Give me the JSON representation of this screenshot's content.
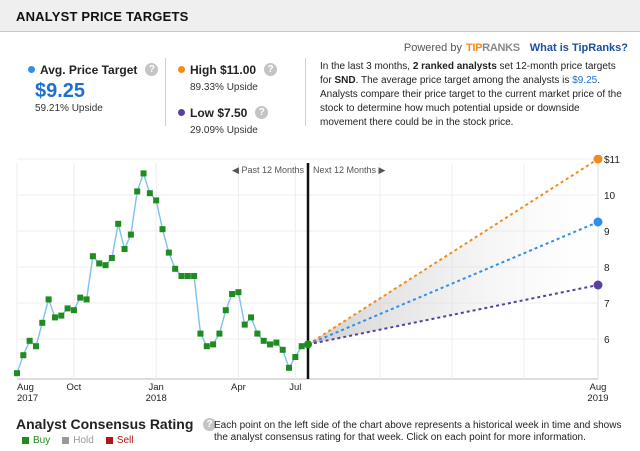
{
  "header": {
    "title": "ANALYST PRICE TARGETS"
  },
  "powered_by": {
    "prefix": "Powered by",
    "brand_tip": "TIP",
    "brand_ranks": "RANKS",
    "link": "What is TipRanks?"
  },
  "avg": {
    "label": "Avg. Price Target",
    "value": "$9.25",
    "upside": "59.21% Upside",
    "color": "#2f8fe8"
  },
  "high": {
    "label": "High $11.00",
    "upside": "89.33% Upside",
    "color": "#f08c1e"
  },
  "low": {
    "label": "Low $7.50",
    "upside": "29.09% Upside",
    "color": "#5a3fa0"
  },
  "description": {
    "p1": "In the last 3 months, ",
    "b1": "2 ranked analysts",
    "p2": " set 12-month price targets for ",
    "ticker": "SND",
    "p3": ". The average price target among the analysts is ",
    "avg": "$9.25",
    "p4": ". Analysts compare their price target to the current market price of the stock to determine how much potential upside or downside movement there could be in the stock price."
  },
  "chart_data": {
    "type": "line",
    "period_labels": {
      "past": "◀ Past 12 Months",
      "next": "Next 12 Months ▶"
    },
    "x_ticks": [
      {
        "label": "Aug",
        "sub": "2017"
      },
      {
        "label": "Oct",
        "sub": ""
      },
      {
        "label": "Jan",
        "sub": "2018"
      },
      {
        "label": "Apr",
        "sub": ""
      },
      {
        "label": "Jul",
        "sub": ""
      },
      {
        "label": "Aug",
        "sub": "2019"
      }
    ],
    "y_ticks": [
      "$11",
      "10",
      "9",
      "8",
      "7",
      "6"
    ],
    "ylim": [
      5,
      11
    ],
    "series": [
      {
        "name": "Price",
        "color": "#7ec0ef",
        "values": [
          5.05,
          5.55,
          5.95,
          5.8,
          6.45,
          7.1,
          6.6,
          6.65,
          6.85,
          6.8,
          7.15,
          7.1,
          8.3,
          8.1,
          8.05,
          8.25,
          9.2,
          8.5,
          8.9,
          10.1,
          10.6,
          10.05,
          9.85,
          9.05,
          8.4,
          7.95,
          7.75,
          7.75,
          7.75,
          6.15,
          5.8,
          5.85,
          6.15,
          6.8,
          7.25,
          7.3,
          6.4,
          6.6,
          6.15,
          5.95,
          5.85,
          5.9,
          5.7,
          5.2,
          5.5,
          5.8,
          5.85
        ]
      },
      {
        "name": "High $11.00",
        "color": "#f08c1e",
        "from": 5.85,
        "to": 11.0
      },
      {
        "name": "Avg. Price Target",
        "color": "#2f8fe8",
        "from": 5.85,
        "to": 9.25
      },
      {
        "name": "Low $7.50",
        "color": "#5a3fa0",
        "from": 5.85,
        "to": 7.5
      }
    ],
    "grid": true
  },
  "consensus": {
    "title": "Analyst Consensus Rating",
    "description": "Each point on the left side of the chart above represents a historical week in time and shows the analyst consensus rating for that week. Click on each point for more information.",
    "legend": [
      {
        "label": "Buy",
        "color": "#1e8c1e",
        "text_color": "#1e8c1e"
      },
      {
        "label": "Hold",
        "color": "#9a9a9a",
        "text_color": "#9a9a9a"
      },
      {
        "label": "Sell",
        "color": "#b01818",
        "text_color": "#b01818"
      }
    ]
  }
}
